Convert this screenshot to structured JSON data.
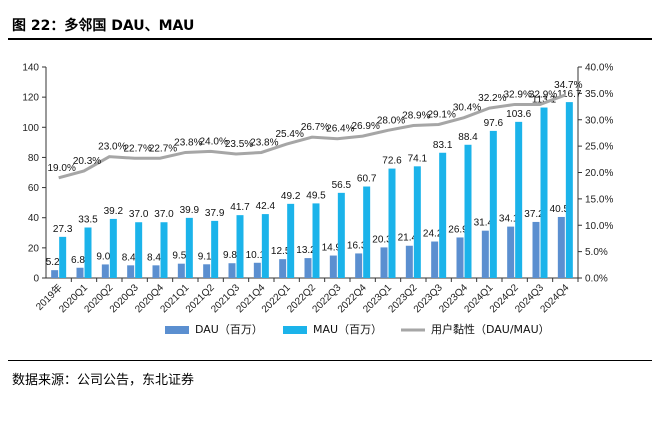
{
  "header": {
    "title": "图 22：多邻国 DAU、MAU"
  },
  "footer": {
    "source": "数据来源：公司公告，东北证券"
  },
  "chart_data": {
    "type": "bar",
    "categories": [
      "2019年",
      "2020Q1",
      "2020Q2",
      "2020Q3",
      "2020Q4",
      "2021Q1",
      "2021Q2",
      "2021Q3",
      "2021Q4",
      "2022Q1",
      "2022Q2",
      "2022Q3",
      "2022Q4",
      "2023Q1",
      "2023Q2",
      "2023Q3",
      "2023Q4",
      "2024Q1",
      "2024Q2",
      "2024Q3",
      "2024Q4"
    ],
    "series": [
      {
        "name": "DAU（百万）",
        "axis": "left",
        "color": "#5b8fd0",
        "values": [
          5.2,
          6.8,
          9.0,
          8.4,
          8.4,
          9.5,
          9.1,
          9.8,
          10.1,
          12.5,
          13.2,
          14.9,
          16.3,
          20.3,
          21.4,
          24.2,
          26.9,
          31.4,
          34.1,
          37.2,
          40.5
        ]
      },
      {
        "name": "MAU（百万）",
        "axis": "left",
        "color": "#1bb3ea",
        "values": [
          27.3,
          33.5,
          39.2,
          37.0,
          37.0,
          39.9,
          37.9,
          41.7,
          42.4,
          49.2,
          49.5,
          56.5,
          60.7,
          72.6,
          74.1,
          83.1,
          88.4,
          97.6,
          103.6,
          113.1,
          116.7
        ]
      },
      {
        "name": "用户黏性（DAU/MAU）",
        "axis": "right",
        "type": "line",
        "color": "#a6a6a6",
        "values": [
          19.0,
          20.3,
          23.0,
          22.7,
          22.7,
          23.8,
          24.0,
          23.5,
          23.8,
          25.4,
          26.7,
          26.4,
          26.9,
          28.0,
          28.9,
          29.1,
          30.4,
          32.2,
          32.9,
          32.9,
          34.7
        ],
        "labels": [
          "19.0%",
          "20.3%",
          "23.0%",
          "22.7%",
          "22.7%",
          "23.8%",
          "24.0%",
          "23.5%",
          "23.8%",
          "25.4%",
          "26.7%",
          "26.4%",
          "26.9%",
          "28.0%",
          "28.9%",
          "29.1%",
          "30.4%",
          "32.2%",
          "32.9%",
          "32.9%",
          "34.7%"
        ]
      }
    ],
    "ylim": [
      0,
      140
    ],
    "y_ticks": [
      "0",
      "20",
      "40",
      "60",
      "80",
      "100",
      "120",
      "140"
    ],
    "y2lim": [
      0,
      40
    ],
    "y2_ticks": [
      "0.0%",
      "5.0%",
      "10.0%",
      "15.0%",
      "20.0%",
      "25.0%",
      "30.0%",
      "35.0%",
      "40.0%"
    ],
    "grid": false,
    "legend_position": "bottom"
  }
}
